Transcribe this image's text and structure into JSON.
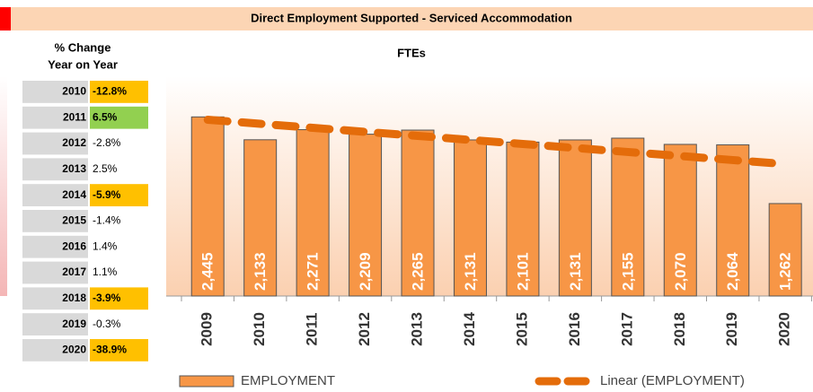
{
  "header": {
    "title": "Direct Employment Supported - Serviced Accommodation"
  },
  "table": {
    "title_line1": "% Change",
    "title_line2": "Year on Year",
    "rows": [
      {
        "year": "2010",
        "change": "-12.8%",
        "color": "#ffc000"
      },
      {
        "year": "2011",
        "change": "6.5%",
        "color": "#92d050"
      },
      {
        "year": "2012",
        "change": "-2.8%",
        "color": null
      },
      {
        "year": "2013",
        "change": "2.5%",
        "color": null
      },
      {
        "year": "2014",
        "change": "-5.9%",
        "color": "#ffc000"
      },
      {
        "year": "2015",
        "change": "-1.4%",
        "color": null
      },
      {
        "year": "2016",
        "change": "1.4%",
        "color": null
      },
      {
        "year": "2017",
        "change": "1.1%",
        "color": null
      },
      {
        "year": "2018",
        "change": "-3.9%",
        "color": "#ffc000"
      },
      {
        "year": "2019",
        "change": "-0.3%",
        "color": null
      },
      {
        "year": "2020",
        "change": "-38.9%",
        "color": "#ffc000"
      }
    ]
  },
  "chart_data": {
    "type": "bar",
    "title": "FTEs",
    "categories": [
      "2009",
      "2010",
      "2011",
      "2012",
      "2013",
      "2014",
      "2015",
      "2016",
      "2017",
      "2018",
      "2019",
      "2020"
    ],
    "series": [
      {
        "name": "EMPLOYMENT",
        "color": "#f79646",
        "type": "bar",
        "values": [
          2445,
          2133,
          2271,
          2209,
          2265,
          2131,
          2101,
          2131,
          2155,
          2070,
          2064,
          1262
        ],
        "value_labels": [
          "2,445",
          "2,133",
          "2,271",
          "2,209",
          "2,265",
          "2,131",
          "2,101",
          "2,131",
          "2,155",
          "2,070",
          "2,064",
          "1,262"
        ]
      },
      {
        "name": "Linear (EMPLOYMENT)",
        "color": "#e46c0a",
        "type": "line",
        "dashed": true,
        "values": [
          2406,
          2351,
          2296,
          2241,
          2186,
          2131,
          2076,
          2021,
          1966,
          1911,
          1856,
          1801
        ]
      }
    ],
    "ylim": [
      0,
      3000
    ],
    "legend": "bottom"
  }
}
